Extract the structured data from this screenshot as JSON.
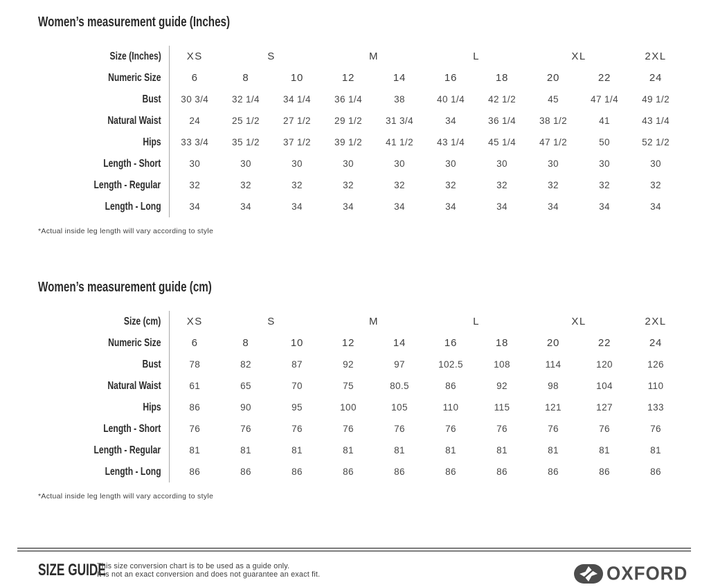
{
  "colors": {
    "text_dark": "#2c2c2c",
    "text_data": "#474747",
    "divider": "#a8a8a8",
    "rule": "#7c7c7c",
    "logo": "#4c4c4c"
  },
  "tables": [
    {
      "title": "Women’s measurement guide (Inches)",
      "corner_label": "Size (Inches)",
      "size_groups": [
        {
          "label": "XS",
          "span": 1
        },
        {
          "label": "S",
          "span": 2
        },
        {
          "label": "M",
          "span": 2
        },
        {
          "label": "L",
          "span": 2
        },
        {
          "label": "XL",
          "span": 2
        },
        {
          "label": "2XL",
          "span": 1
        }
      ],
      "rows": [
        {
          "label": "Numeric Size",
          "bold": true,
          "values": [
            "6",
            "8",
            "10",
            "12",
            "14",
            "16",
            "18",
            "20",
            "22",
            "24"
          ]
        },
        {
          "label": "Bust",
          "bold": false,
          "values": [
            "30 3/4",
            "32 1/4",
            "34 1/4",
            "36 1/4",
            "38",
            "40 1/4",
            "42 1/2",
            "45",
            "47 1/4",
            "49 1/2"
          ]
        },
        {
          "label": "Natural Waist",
          "bold": false,
          "values": [
            "24",
            "25 1/2",
            "27 1/2",
            "29 1/2",
            "31 3/4",
            "34",
            "36 1/4",
            "38 1/2",
            "41",
            "43 1/4"
          ]
        },
        {
          "label": "Hips",
          "bold": false,
          "values": [
            "33 3/4",
            "35 1/2",
            "37 1/2",
            "39 1/2",
            "41 1/2",
            "43 1/4",
            "45 1/4",
            "47 1/2",
            "50",
            "52 1/2"
          ]
        },
        {
          "label": "Length - Short",
          "bold": false,
          "values": [
            "30",
            "30",
            "30",
            "30",
            "30",
            "30",
            "30",
            "30",
            "30",
            "30"
          ]
        },
        {
          "label": "Length - Regular",
          "bold": false,
          "values": [
            "32",
            "32",
            "32",
            "32",
            "32",
            "32",
            "32",
            "32",
            "32",
            "32"
          ]
        },
        {
          "label": "Length - Long",
          "bold": false,
          "values": [
            "34",
            "34",
            "34",
            "34",
            "34",
            "34",
            "34",
            "34",
            "34",
            "34"
          ]
        }
      ],
      "footnote": "*Actual inside leg length will vary according to style"
    },
    {
      "title": "Women’s measurement guide (cm)",
      "corner_label": "Size (cm)",
      "size_groups": [
        {
          "label": "XS",
          "span": 1
        },
        {
          "label": "S",
          "span": 2
        },
        {
          "label": "M",
          "span": 2
        },
        {
          "label": "L",
          "span": 2
        },
        {
          "label": "XL",
          "span": 2
        },
        {
          "label": "2XL",
          "span": 1
        }
      ],
      "rows": [
        {
          "label": "Numeric Size",
          "bold": true,
          "values": [
            "6",
            "8",
            "10",
            "12",
            "14",
            "16",
            "18",
            "20",
            "22",
            "24"
          ]
        },
        {
          "label": "Bust",
          "bold": false,
          "values": [
            "78",
            "82",
            "87",
            "92",
            "97",
            "102.5",
            "108",
            "114",
            "120",
            "126"
          ]
        },
        {
          "label": "Natural Waist",
          "bold": false,
          "values": [
            "61",
            "65",
            "70",
            "75",
            "80.5",
            "86",
            "92",
            "98",
            "104",
            "110"
          ]
        },
        {
          "label": "Hips",
          "bold": false,
          "values": [
            "86",
            "90",
            "95",
            "100",
            "105",
            "110",
            "115",
            "121",
            "127",
            "133"
          ]
        },
        {
          "label": "Length - Short",
          "bold": false,
          "values": [
            "76",
            "76",
            "76",
            "76",
            "76",
            "76",
            "76",
            "76",
            "76",
            "76"
          ]
        },
        {
          "label": "Length - Regular",
          "bold": false,
          "values": [
            "81",
            "81",
            "81",
            "81",
            "81",
            "81",
            "81",
            "81",
            "81",
            "81"
          ]
        },
        {
          "label": "Length - Long",
          "bold": false,
          "values": [
            "86",
            "86",
            "86",
            "86",
            "86",
            "86",
            "86",
            "86",
            "86",
            "86"
          ]
        }
      ],
      "footnote": "*Actual inside leg length will vary according to style"
    }
  ],
  "footer": {
    "title": "SIZE GUIDE",
    "disclaimer_line1": "This size conversion chart is to be used as a guide only.",
    "disclaimer_line2": "It is not an exact conversion and does not guarantee an exact fit.",
    "brand": "OXFORD",
    "brand_icon": "oxford-pinwheel-icon"
  }
}
